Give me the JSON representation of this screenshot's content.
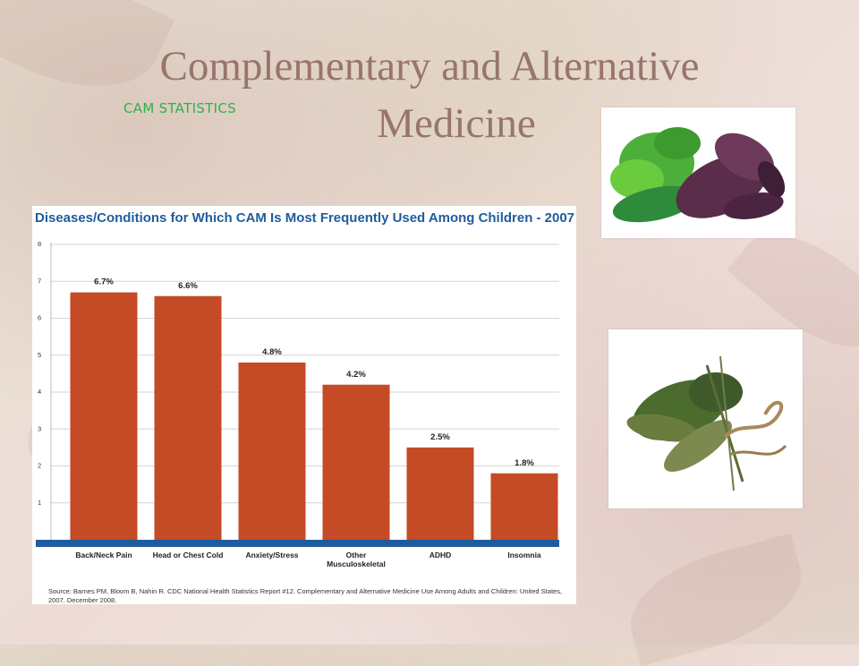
{
  "slide": {
    "title_line1": "Complementary and Alternative",
    "title_line2": "Medicine",
    "subtitle": "CAM STATISTICS"
  },
  "colors": {
    "title": "#98756c",
    "subtitle": "#2db34a",
    "bar": "#c44b26",
    "baseline": "#1f5c9e",
    "chart_title": "#1f5c9e"
  },
  "chart_data": {
    "type": "bar",
    "title": "Diseases/Conditions for Which CAM Is Most Frequently Used Among Children - 2007",
    "categories": [
      "Back/Neck Pain",
      "Head or Chest Cold",
      "Anxiety/Stress",
      "Other Musculoskeletal",
      "ADHD",
      "Insomnia"
    ],
    "values": [
      6.7,
      6.6,
      4.8,
      4.2,
      2.5,
      1.8
    ],
    "data_labels": [
      "6.7%",
      "6.6%",
      "4.8%",
      "4.2%",
      "2.5%",
      "1.8%"
    ],
    "yticks": [
      "1",
      "2",
      "3",
      "4",
      "5",
      "6",
      "7",
      "8"
    ],
    "ylim": [
      0,
      8
    ],
    "grid": true,
    "xlabel": "",
    "ylabel": "",
    "source": "Source: Barnes PM, Bloom B, Nahin R. CDC National Health Statistics Report #12. Complementary and Alternative Medicine Use Among Adults and Children: United States, 2007. December 2008."
  },
  "images": {
    "basil_photo": "basil-herbs-photo",
    "herb_bundle_photo": "herb-bundle-photo"
  }
}
